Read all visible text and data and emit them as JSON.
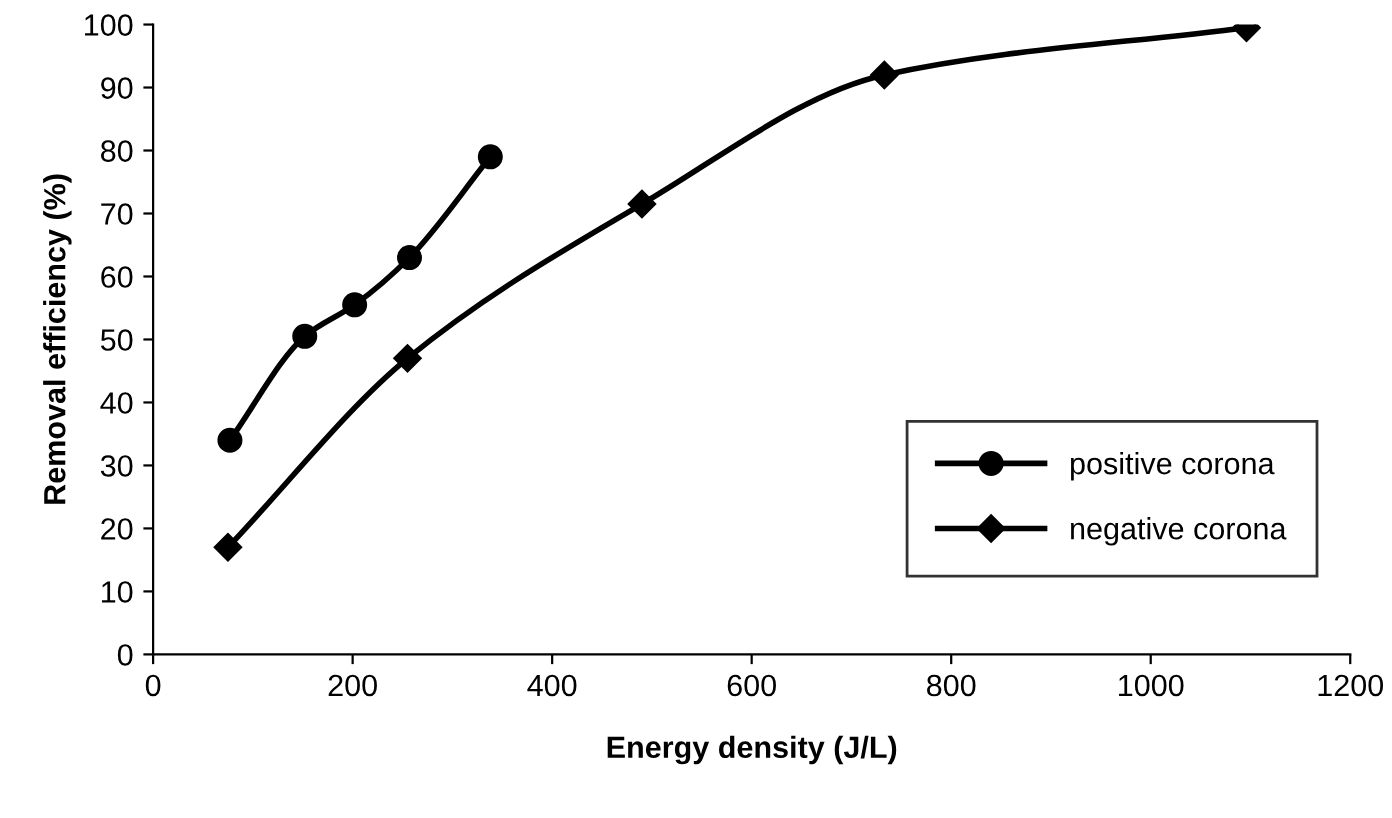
{
  "chart_data": {
    "type": "line",
    "xlabel": "Energy density (J/L)",
    "ylabel": "Removal efficiency (%)",
    "xlim": [
      0,
      1200
    ],
    "xticks": [
      0,
      200,
      400,
      600,
      800,
      1000,
      1200
    ],
    "ylim": [
      0,
      100
    ],
    "yticks": [
      0,
      10,
      20,
      30,
      40,
      50,
      60,
      70,
      80,
      90,
      100
    ],
    "grid": false,
    "legend": "bottom right",
    "line_style": "solid",
    "series": [
      {
        "name": "positive corona",
        "color": "#000000",
        "marker": "circle",
        "x": [
          77,
          152,
          202,
          257,
          338
        ],
        "values": [
          34,
          50.5,
          55.5,
          63,
          79
        ]
      },
      {
        "name": "negative corona",
        "color": "#000000",
        "marker": "diamond",
        "x": [
          75,
          255,
          490,
          733,
          1096
        ],
        "values": [
          17,
          47,
          71.5,
          92,
          99.5
        ]
      }
    ]
  }
}
